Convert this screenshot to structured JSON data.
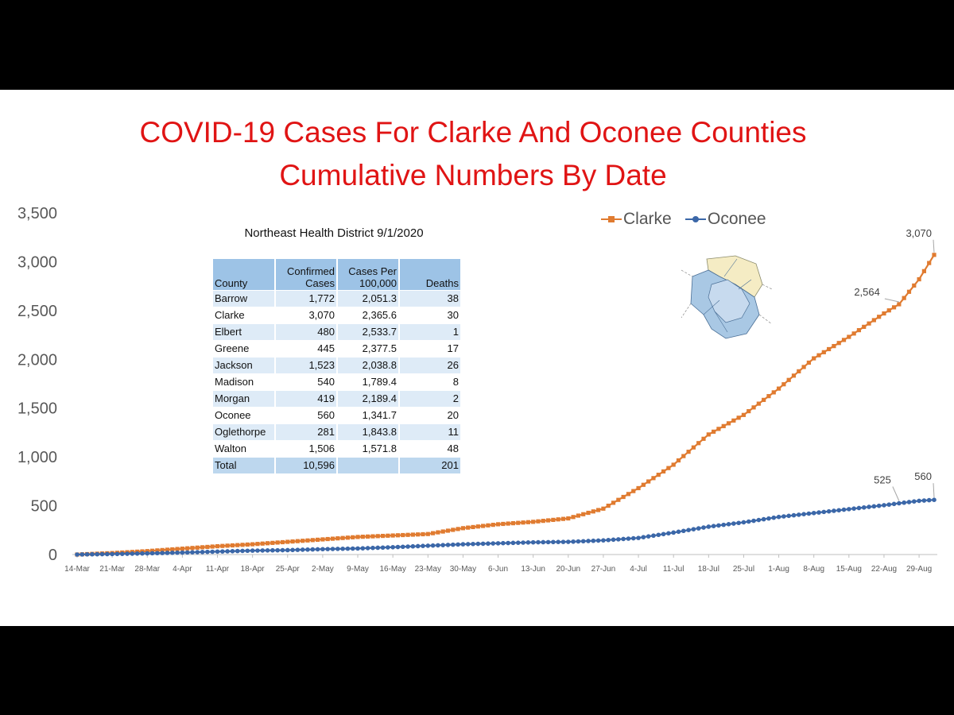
{
  "title_line1": "COVID-19 Cases For Clarke And Oconee Counties",
  "title_line2": "Cumulative Numbers By Date",
  "colors": {
    "clarke": "#e07b30",
    "oconee": "#3b67a8",
    "title": "#e01414"
  },
  "chart_data": {
    "type": "line",
    "title": "COVID-19 Cases For Clarke And Oconee Counties Cumulative Numbers By Date",
    "ylim": [
      0,
      3500
    ],
    "yticks": [
      "0",
      "500",
      "1,000",
      "1,500",
      "2,000",
      "2,500",
      "3,000",
      "3,500"
    ],
    "xtick_labels": [
      "14-Mar",
      "21-Mar",
      "28-Mar",
      "4-Apr",
      "11-Apr",
      "18-Apr",
      "25-Apr",
      "2-May",
      "9-May",
      "16-May",
      "23-May",
      "30-May",
      "6-Jun",
      "13-Jun",
      "20-Jun",
      "27-Jun",
      "4-Jul",
      "11-Jul",
      "18-Jul",
      "25-Jul",
      "1-Aug",
      "8-Aug",
      "15-Aug",
      "22-Aug",
      "29-Aug"
    ],
    "legend_position": "top-right",
    "grid": false,
    "series": [
      {
        "name": "Clarke",
        "marker": "square",
        "points": [
          [
            "14-Mar",
            0
          ],
          [
            "21-Mar",
            15
          ],
          [
            "28-Mar",
            35
          ],
          [
            "4-Apr",
            60
          ],
          [
            "11-Apr",
            85
          ],
          [
            "18-Apr",
            105
          ],
          [
            "25-Apr",
            130
          ],
          [
            "2-May",
            155
          ],
          [
            "9-May",
            180
          ],
          [
            "16-May",
            195
          ],
          [
            "23-May",
            210
          ],
          [
            "30-May",
            270
          ],
          [
            "6-Jun",
            310
          ],
          [
            "13-Jun",
            335
          ],
          [
            "20-Jun",
            370
          ],
          [
            "27-Jun",
            470
          ],
          [
            "4-Jul",
            680
          ],
          [
            "11-Jul",
            920
          ],
          [
            "18-Jul",
            1230
          ],
          [
            "25-Jul",
            1430
          ],
          [
            "1-Aug",
            1700
          ],
          [
            "8-Aug",
            2010
          ],
          [
            "15-Aug",
            2230
          ],
          [
            "22-Aug",
            2470
          ],
          [
            "25-Aug",
            2564
          ],
          [
            "29-Aug",
            2820
          ],
          [
            "1-Sep",
            3070
          ]
        ]
      },
      {
        "name": "Oconee",
        "marker": "circle",
        "points": [
          [
            "14-Mar",
            0
          ],
          [
            "21-Mar",
            5
          ],
          [
            "28-Mar",
            12
          ],
          [
            "4-Apr",
            20
          ],
          [
            "11-Apr",
            30
          ],
          [
            "18-Apr",
            40
          ],
          [
            "25-Apr",
            45
          ],
          [
            "2-May",
            55
          ],
          [
            "9-May",
            62
          ],
          [
            "16-May",
            75
          ],
          [
            "23-May",
            90
          ],
          [
            "30-May",
            105
          ],
          [
            "6-Jun",
            115
          ],
          [
            "13-Jun",
            125
          ],
          [
            "20-Jun",
            130
          ],
          [
            "27-Jun",
            145
          ],
          [
            "4-Jul",
            170
          ],
          [
            "11-Jul",
            225
          ],
          [
            "18-Jul",
            285
          ],
          [
            "25-Jul",
            330
          ],
          [
            "1-Aug",
            385
          ],
          [
            "8-Aug",
            425
          ],
          [
            "15-Aug",
            465
          ],
          [
            "22-Aug",
            505
          ],
          [
            "25-Aug",
            525
          ],
          [
            "29-Aug",
            550
          ],
          [
            "1-Sep",
            560
          ]
        ]
      }
    ],
    "annotations": [
      {
        "text": "3,070",
        "series": "Clarke",
        "x": "1-Sep",
        "y": 3070
      },
      {
        "text": "2,564",
        "series": "Clarke",
        "x": "25-Aug",
        "y": 2564
      },
      {
        "text": "525",
        "series": "Oconee",
        "x": "25-Aug",
        "y": 525
      },
      {
        "text": "560",
        "series": "Oconee",
        "x": "1-Sep",
        "y": 560
      }
    ]
  },
  "table": {
    "title": "Northeast Health District 9/1/2020",
    "headers": [
      "County",
      "Confirmed Cases",
      "Cases Per 100,000",
      "Deaths"
    ],
    "rows": [
      [
        "Barrow",
        "1,772",
        "2,051.3",
        "38"
      ],
      [
        "Clarke",
        "3,070",
        "2,365.6",
        "30"
      ],
      [
        "Elbert",
        "480",
        "2,533.7",
        "1"
      ],
      [
        "Greene",
        "445",
        "2,377.5",
        "17"
      ],
      [
        "Jackson",
        "1,523",
        "2,038.8",
        "26"
      ],
      [
        "Madison",
        "540",
        "1,789.4",
        "8"
      ],
      [
        "Morgan",
        "419",
        "2,189.4",
        "2"
      ],
      [
        "Oconee",
        "560",
        "1,341.7",
        "20"
      ],
      [
        "Oglethorpe",
        "281",
        "1,843.8",
        "11"
      ],
      [
        "Walton",
        "1,506",
        "1,571.8",
        "48"
      ]
    ],
    "total": [
      "Total",
      "10,596",
      "",
      "201"
    ]
  }
}
